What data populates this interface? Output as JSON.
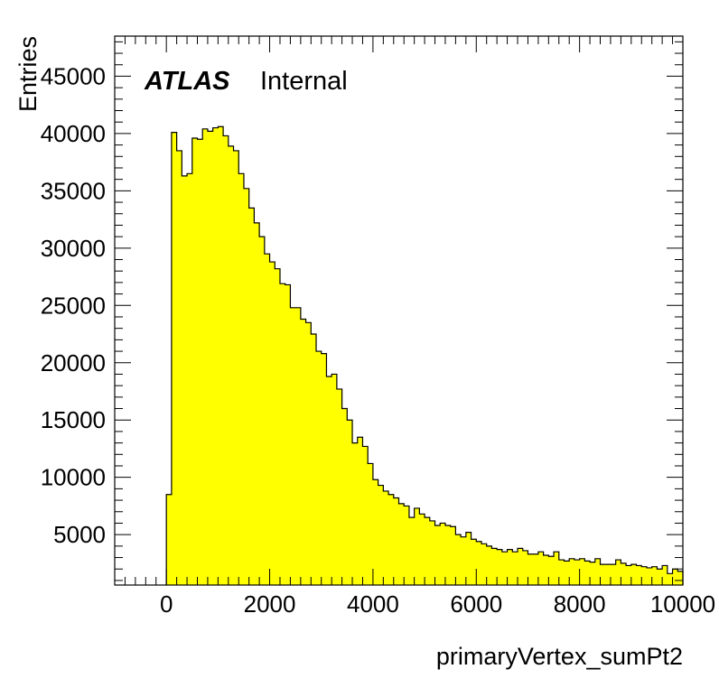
{
  "chart_data": {
    "type": "histogram",
    "xlabel": "primaryVertex_sumPt2",
    "ylabel": "Entries",
    "xlim": [
      -1000,
      10000
    ],
    "ylim": [
      600,
      48500
    ],
    "grid": false,
    "legend": "none",
    "fill_color": "#ffff00",
    "line_color": "#000000",
    "x_ticks": [
      0,
      2000,
      4000,
      6000,
      8000,
      10000
    ],
    "y_ticks": [
      5000,
      10000,
      15000,
      20000,
      25000,
      30000,
      35000,
      40000,
      45000
    ],
    "annotation": {
      "experiment": "ATLAS",
      "status": "Internal"
    },
    "bin_edges_start": 0,
    "bin_width": 100,
    "values": [
      8500,
      40100,
      38500,
      36300,
      36500,
      39600,
      39500,
      40400,
      40200,
      40500,
      40600,
      39800,
      38900,
      38500,
      36500,
      35200,
      33500,
      32200,
      31000,
      29500,
      28800,
      28200,
      26900,
      26800,
      24800,
      24800,
      23800,
      23500,
      22500,
      21000,
      20800,
      18800,
      19000,
      17700,
      16000,
      15000,
      13000,
      13500,
      12700,
      11200,
      9800,
      9300,
      8800,
      8500,
      8200,
      7700,
      7500,
      6500,
      7300,
      6800,
      6500,
      6200,
      5800,
      6000,
      5800,
      5700,
      5000,
      4800,
      5200,
      4600,
      4400,
      4200,
      4000,
      3800,
      3700,
      3500,
      3700,
      3500,
      3800,
      3600,
      3300,
      3300,
      3500,
      3200,
      3100,
      3500,
      2800,
      2700,
      2900,
      2800,
      2900,
      2700,
      2600,
      2900,
      2400,
      2400,
      2400,
      2800,
      2500,
      2300,
      2400,
      2300,
      2200,
      2100,
      2200,
      2000,
      2300,
      1600,
      2000,
      1800
    ]
  }
}
